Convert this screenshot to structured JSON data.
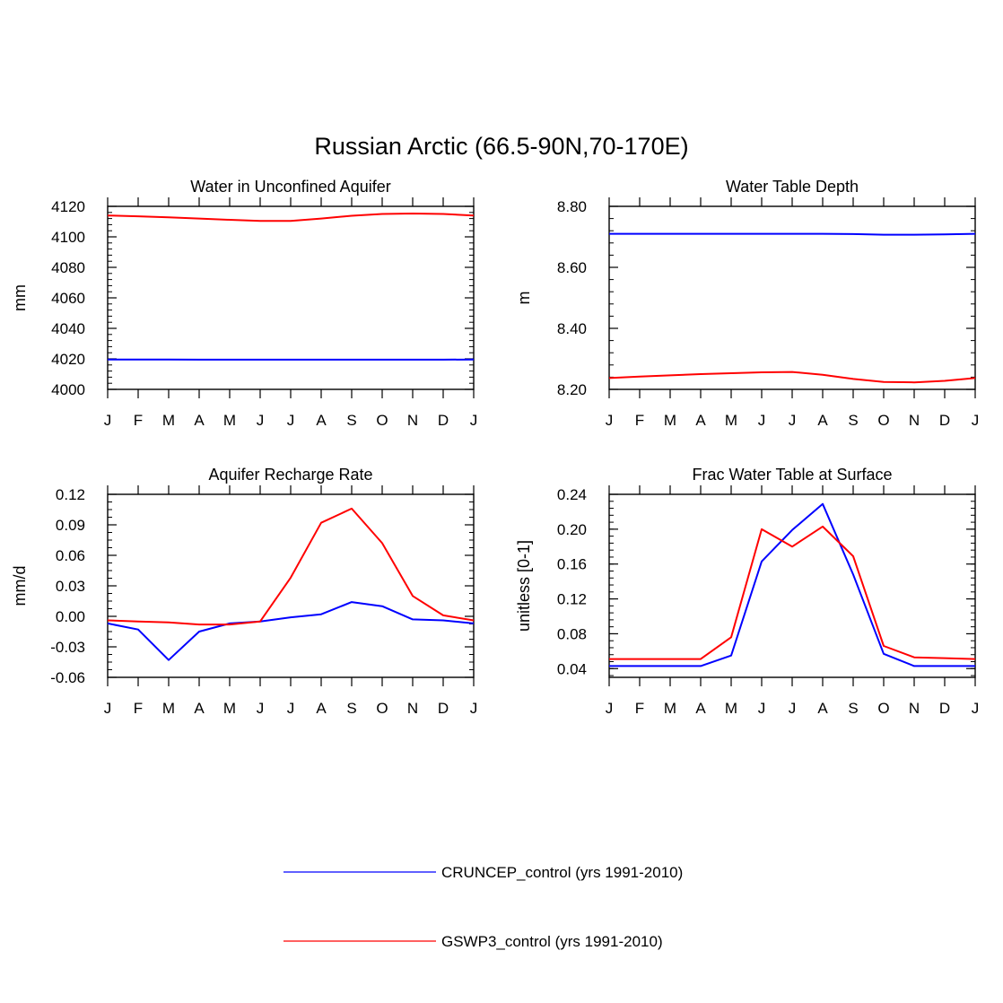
{
  "figure_title": "Russian Arctic (66.5-90N,70-170E)",
  "legend": [
    {
      "label": "CRUNCEP_control (yrs 1991-2010)",
      "color": "#0000ff"
    },
    {
      "label": "GSWP3_control (yrs 1991-2010)",
      "color": "#ff0000"
    }
  ],
  "colors": {
    "cruncep": "#0000ff",
    "gswp3": "#ff0000"
  },
  "chart_data": [
    {
      "type": "line",
      "title": "Water in Unconfined Aquifer",
      "ylabel": "mm",
      "x": [
        "J",
        "F",
        "M",
        "A",
        "M",
        "J",
        "J",
        "A",
        "S",
        "O",
        "N",
        "D",
        "J"
      ],
      "ylim": [
        4000,
        4120
      ],
      "yticks": [
        "4000",
        "4020",
        "4040",
        "4060",
        "4080",
        "4100",
        "4120"
      ],
      "series": [
        {
          "name": "CRUNCEP_control (yrs 1991-2010)",
          "values": [
            4019.6,
            4019.6,
            4019.6,
            4019.5,
            4019.5,
            4019.5,
            4019.5,
            4019.5,
            4019.5,
            4019.5,
            4019.5,
            4019.5,
            4019.6
          ]
        },
        {
          "name": "GSWP3_control (yrs 1991-2010)",
          "values": [
            4114.0,
            4113.5,
            4112.8,
            4112.0,
            4111.2,
            4110.5,
            4110.5,
            4112.0,
            4113.8,
            4115.0,
            4115.3,
            4115.0,
            4114.0
          ]
        }
      ]
    },
    {
      "type": "line",
      "title": "Water Table Depth",
      "ylabel": "m",
      "x": [
        "J",
        "F",
        "M",
        "A",
        "M",
        "J",
        "J",
        "A",
        "S",
        "O",
        "N",
        "D",
        "J"
      ],
      "ylim": [
        8.2,
        8.8
      ],
      "yticks": [
        "8.20",
        "8.40",
        "8.60",
        "8.80"
      ],
      "series": [
        {
          "name": "CRUNCEP_control (yrs 1991-2010)",
          "values": [
            8.71,
            8.71,
            8.71,
            8.71,
            8.71,
            8.71,
            8.71,
            8.71,
            8.709,
            8.707,
            8.707,
            8.708,
            8.71
          ]
        },
        {
          "name": "GSWP3_control (yrs 1991-2010)",
          "values": [
            8.237,
            8.242,
            8.246,
            8.25,
            8.253,
            8.256,
            8.257,
            8.248,
            8.234,
            8.224,
            8.223,
            8.228,
            8.237
          ]
        }
      ]
    },
    {
      "type": "line",
      "title": "Aquifer Recharge Rate",
      "ylabel": "mm/d",
      "x": [
        "J",
        "F",
        "M",
        "A",
        "M",
        "J",
        "J",
        "A",
        "S",
        "O",
        "N",
        "D",
        "J"
      ],
      "ylim": [
        -0.06,
        0.12
      ],
      "yticks": [
        "-0.06",
        "-0.03",
        "0.00",
        "0.03",
        "0.06",
        "0.09",
        "0.12"
      ],
      "series": [
        {
          "name": "CRUNCEP_control (yrs 1991-2010)",
          "values": [
            -0.007,
            -0.013,
            -0.043,
            -0.015,
            -0.007,
            -0.005,
            -0.001,
            0.002,
            0.014,
            0.01,
            -0.003,
            -0.004,
            -0.007
          ]
        },
        {
          "name": "GSWP3_control (yrs 1991-2010)",
          "values": [
            -0.004,
            -0.005,
            -0.006,
            -0.008,
            -0.008,
            -0.005,
            0.038,
            0.092,
            0.106,
            0.072,
            0.02,
            0.001,
            -0.004
          ]
        }
      ]
    },
    {
      "type": "line",
      "title": "Frac Water Table at Surface",
      "ylabel": "unitless [0-1]",
      "x": [
        "J",
        "F",
        "M",
        "A",
        "M",
        "J",
        "J",
        "A",
        "S",
        "O",
        "N",
        "D",
        "J"
      ],
      "ylim": [
        0.03,
        0.24
      ],
      "yticks": [
        "0.04",
        "0.08",
        "0.12",
        "0.16",
        "0.20",
        "0.24"
      ],
      "series": [
        {
          "name": "CRUNCEP_control (yrs 1991-2010)",
          "values": [
            0.043,
            0.043,
            0.043,
            0.043,
            0.055,
            0.163,
            0.199,
            0.229,
            0.148,
            0.057,
            0.043,
            0.043,
            0.043
          ]
        },
        {
          "name": "GSWP3_control (yrs 1991-2010)",
          "values": [
            0.051,
            0.051,
            0.051,
            0.051,
            0.076,
            0.2,
            0.18,
            0.203,
            0.169,
            0.066,
            0.053,
            0.052,
            0.051
          ]
        }
      ]
    }
  ]
}
